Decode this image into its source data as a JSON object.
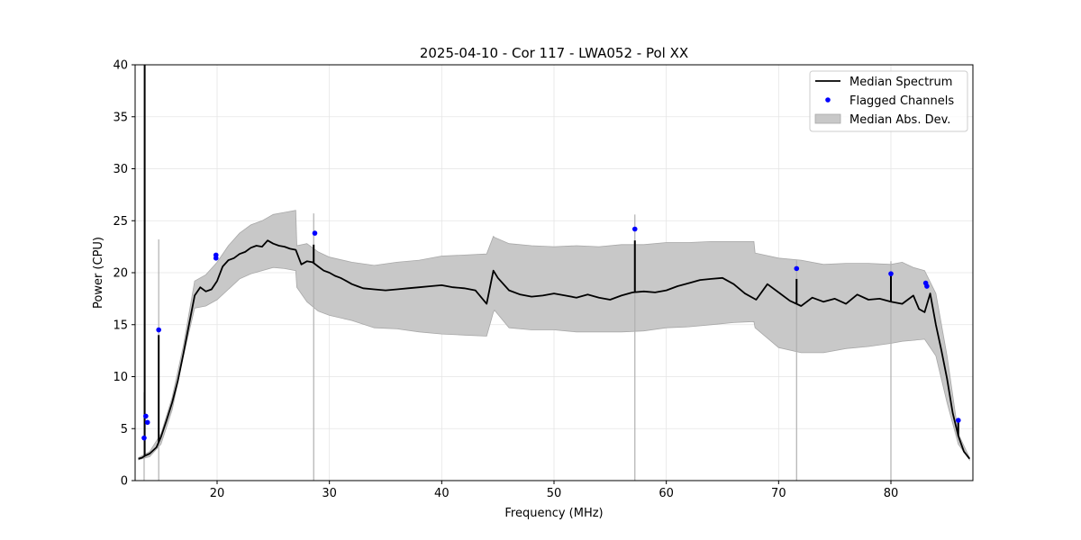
{
  "chart_data": {
    "type": "line",
    "title": "2025-04-10 - Cor 117 - LWA052 - Pol XX",
    "xlabel": "Frequency (MHz)",
    "ylabel": "Power (CPU)",
    "xlim": [
      12.7,
      87.3
    ],
    "ylim": [
      0,
      40
    ],
    "xticks": [
      20,
      30,
      40,
      50,
      60,
      70,
      80
    ],
    "yticks": [
      0,
      5,
      10,
      15,
      20,
      25,
      30,
      35,
      40
    ],
    "grid": true,
    "legend_position": "top-right",
    "legend": [
      "Median Spectrum",
      "Flagged Channels",
      "Median Abs. Dev."
    ],
    "colors": {
      "median": "#000000",
      "flagged": "#0000ff",
      "mad": "#c8c8c8",
      "mad_edge": "#a8a8a8"
    },
    "series": [
      {
        "name": "Median Spectrum",
        "x": [
          13.0,
          13.3,
          13.6,
          14.0,
          14.6,
          15.0,
          15.5,
          16.0,
          16.5,
          17.0,
          17.5,
          18.0,
          18.5,
          19.0,
          19.5,
          20.0,
          20.5,
          21.0,
          21.5,
          22.0,
          22.5,
          23.0,
          23.5,
          24.0,
          24.5,
          25.0,
          25.5,
          26.0,
          26.5,
          27.0,
          27.5,
          28.0,
          28.5,
          29.0,
          29.5,
          30.0,
          30.5,
          31.0,
          31.5,
          32.0,
          32.5,
          33.0,
          34.0,
          35.0,
          36.0,
          37.0,
          38.0,
          39.0,
          40.0,
          41.0,
          42.0,
          43.0,
          44.0,
          44.6,
          45.0,
          46.0,
          47.0,
          48.0,
          49.0,
          50.0,
          51.0,
          52.0,
          53.0,
          54.0,
          55.0,
          56.0,
          57.0,
          58.0,
          59.0,
          60.0,
          61.0,
          62.0,
          63.0,
          64.0,
          65.0,
          66.0,
          67.0,
          68.0,
          69.0,
          70.0,
          71.0,
          72.0,
          73.0,
          74.0,
          75.0,
          76.0,
          77.0,
          78.0,
          79.0,
          80.0,
          81.0,
          82.0,
          82.5,
          83.0,
          83.5,
          84.0,
          84.5,
          85.0,
          85.5,
          86.0,
          86.5,
          87.0
        ],
        "y": [
          2.1,
          2.2,
          2.4,
          2.6,
          3.2,
          4.2,
          5.8,
          7.5,
          9.6,
          12.2,
          15.0,
          17.8,
          18.6,
          18.2,
          18.4,
          19.2,
          20.6,
          21.2,
          21.4,
          21.8,
          22.0,
          22.4,
          22.6,
          22.5,
          23.1,
          22.8,
          22.6,
          22.5,
          22.3,
          22.2,
          20.8,
          21.1,
          21.0,
          20.6,
          20.2,
          20.0,
          19.7,
          19.5,
          19.2,
          18.9,
          18.7,
          18.5,
          18.4,
          18.3,
          18.4,
          18.5,
          18.6,
          18.7,
          18.8,
          18.6,
          18.5,
          18.3,
          17.0,
          20.2,
          19.5,
          18.3,
          17.9,
          17.7,
          17.8,
          18.0,
          17.8,
          17.6,
          17.9,
          17.6,
          17.4,
          17.8,
          18.1,
          18.2,
          18.1,
          18.3,
          18.7,
          19.0,
          19.3,
          19.4,
          19.5,
          18.9,
          18.0,
          17.4,
          18.9,
          18.1,
          17.3,
          16.8,
          17.6,
          17.2,
          17.5,
          17.0,
          17.9,
          17.4,
          17.5,
          17.2,
          17.0,
          17.8,
          16.5,
          16.2,
          18.0,
          15.0,
          12.5,
          9.8,
          6.5,
          4.3,
          2.8,
          2.1
        ]
      }
    ],
    "spikes": [
      {
        "x": 13.55,
        "y": 40.0
      },
      {
        "x": 14.8,
        "y": 14.0
      },
      {
        "x": 28.6,
        "y": 22.7
      },
      {
        "x": 57.2,
        "y": 23.1
      },
      {
        "x": 71.6,
        "y": 19.4
      },
      {
        "x": 80.0,
        "y": 19.9
      },
      {
        "x": 86.0,
        "y": 5.8
      }
    ],
    "mad_band": {
      "name": "Median Abs. Dev.",
      "x": [
        13.0,
        14.0,
        15.0,
        16.0,
        17.0,
        18.0,
        19.0,
        20.0,
        21.0,
        22.0,
        23.0,
        24.0,
        25.0,
        26.0,
        27.0,
        27.1,
        28.0,
        29.0,
        30.0,
        32.0,
        34.0,
        36.0,
        38.0,
        40.0,
        42.0,
        44.0,
        44.6,
        44.7,
        46.0,
        48.0,
        50.0,
        52.0,
        54.0,
        56.0,
        58.0,
        60.0,
        62.0,
        64.0,
        66.0,
        67.8,
        67.9,
        70.0,
        72.0,
        74.0,
        76.0,
        78.0,
        80.0,
        81.0,
        82.0,
        83.0,
        84.0,
        85.0,
        86.0,
        87.0
      ],
      "upper": [
        2.2,
        2.8,
        4.5,
        8.0,
        13.0,
        19.2,
        19.8,
        21.0,
        22.6,
        23.8,
        24.6,
        25.0,
        25.6,
        25.8,
        26.0,
        22.6,
        22.8,
        22.0,
        21.5,
        21.0,
        20.7,
        21.0,
        21.2,
        21.6,
        21.7,
        21.8,
        23.5,
        23.4,
        22.8,
        22.6,
        22.5,
        22.6,
        22.5,
        22.7,
        22.7,
        22.9,
        22.9,
        23.0,
        23.0,
        23.0,
        21.9,
        21.4,
        21.2,
        20.8,
        20.9,
        20.9,
        20.8,
        21.0,
        20.5,
        20.2,
        18.0,
        12.0,
        4.5,
        2.2
      ],
      "lower": [
        2.0,
        2.3,
        3.5,
        6.8,
        12.0,
        16.6,
        16.8,
        17.4,
        18.4,
        19.4,
        19.9,
        20.2,
        20.5,
        20.4,
        20.2,
        18.6,
        17.2,
        16.3,
        15.9,
        15.4,
        14.7,
        14.6,
        14.3,
        14.1,
        14.0,
        13.9,
        16.2,
        16.4,
        14.7,
        14.5,
        14.5,
        14.3,
        14.3,
        14.3,
        14.4,
        14.7,
        14.8,
        15.0,
        15.2,
        15.3,
        14.7,
        12.8,
        12.3,
        12.3,
        12.7,
        12.9,
        13.2,
        13.4,
        13.5,
        13.6,
        12.0,
        7.5,
        3.5,
        2.0
      ]
    },
    "mad_spikes": [
      {
        "x": 13.5,
        "y": 8.5
      },
      {
        "x": 14.8,
        "y": 23.2
      },
      {
        "x": 28.6,
        "y": 25.7
      },
      {
        "x": 57.2,
        "y": 25.6
      },
      {
        "x": 71.6,
        "y": 21.2
      },
      {
        "x": 80.0,
        "y": 21.1
      }
    ],
    "flagged_channels": {
      "name": "Flagged Channels",
      "x": [
        13.5,
        13.65,
        13.8,
        14.8,
        19.9,
        19.9,
        28.7,
        57.2,
        71.6,
        80.0,
        83.1,
        83.2,
        86.0
      ],
      "y": [
        4.1,
        6.2,
        5.6,
        14.5,
        21.7,
        21.4,
        23.8,
        24.2,
        20.4,
        19.9,
        19.0,
        18.7,
        5.8
      ]
    }
  }
}
